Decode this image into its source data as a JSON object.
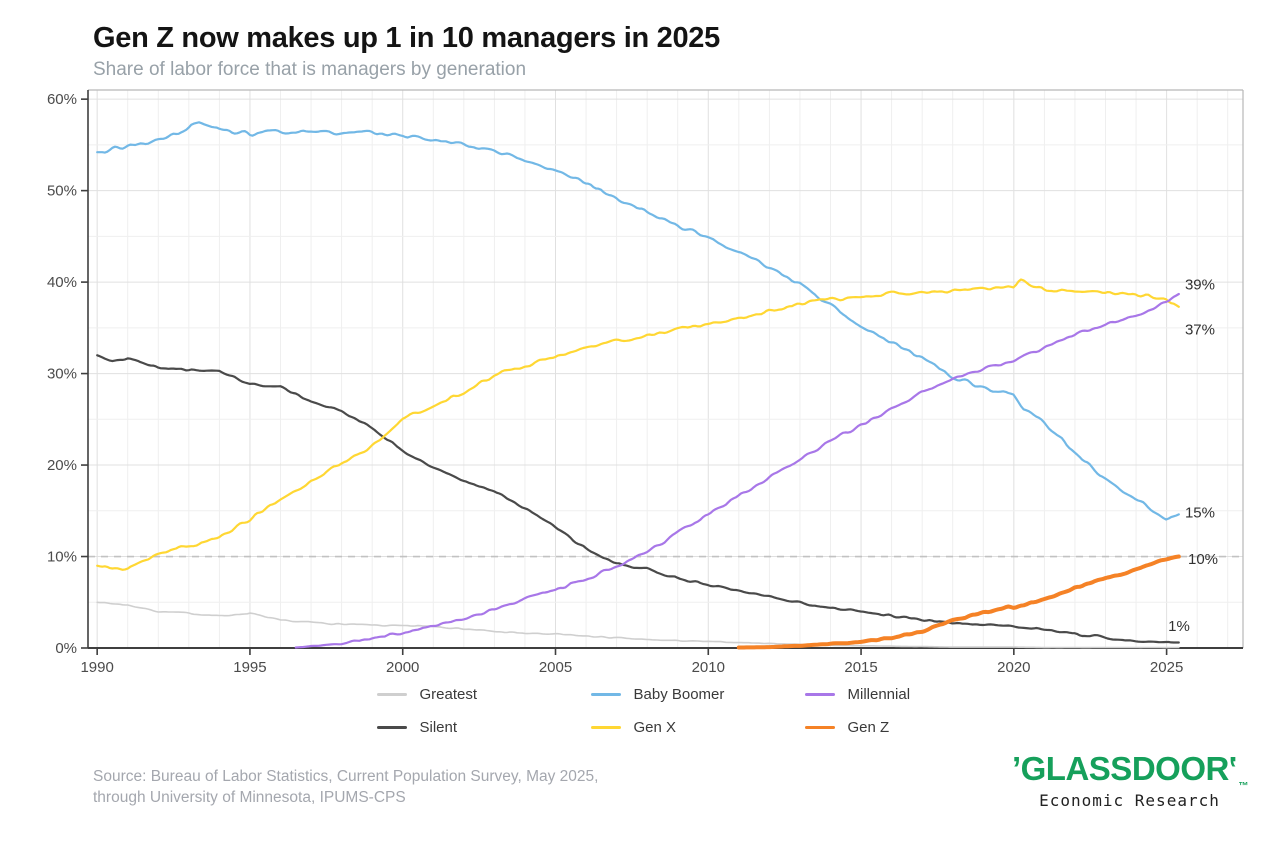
{
  "header": {
    "title": "Gen Z now makes up 1 in 10 managers in 2025",
    "subtitle": "Share of labor force that is managers by generation"
  },
  "chart_data": {
    "type": "line",
    "title": "Gen Z now makes up 1 in 10 managers in 2025",
    "subtitle": "Share of labor force that is managers by generation",
    "xlabel": "",
    "ylabel": "",
    "x": {
      "min": 1989.7,
      "max": 2027.5,
      "ticks": [
        1990,
        1995,
        2000,
        2005,
        2010,
        2015,
        2020,
        2025
      ],
      "minor_step": 1
    },
    "y": {
      "min": 0,
      "max": 61,
      "ticks": [
        0,
        10,
        20,
        30,
        40,
        50,
        60
      ],
      "tick_suffix": "%",
      "minor_step": 5
    },
    "grid": true,
    "legend_position": "bottom",
    "reference_line": {
      "value": 10,
      "style": "dashed"
    },
    "series": [
      {
        "name": "Greatest",
        "color": "#cfcfcf",
        "width": 1.6,
        "noise": 0.12,
        "points": [
          [
            1990,
            5.0
          ],
          [
            1991,
            4.7
          ],
          [
            1992,
            4.0
          ],
          [
            1993,
            3.8
          ],
          [
            1994,
            3.5
          ],
          [
            1995,
            3.8
          ],
          [
            1996,
            3.0
          ],
          [
            1997,
            2.8
          ],
          [
            1998,
            2.6
          ],
          [
            1999,
            2.5
          ],
          [
            2000,
            2.4
          ],
          [
            2001,
            2.4
          ],
          [
            2002,
            2.1
          ],
          [
            2003,
            1.8
          ],
          [
            2004,
            1.6
          ],
          [
            2005,
            1.5
          ],
          [
            2006,
            1.3
          ],
          [
            2007,
            1.1
          ],
          [
            2008,
            0.9
          ],
          [
            2009,
            0.8
          ],
          [
            2010,
            0.7
          ],
          [
            2011,
            0.6
          ],
          [
            2012,
            0.5
          ],
          [
            2013,
            0.4
          ],
          [
            2014,
            0.3
          ],
          [
            2015,
            0.25
          ],
          [
            2016,
            0.2
          ],
          [
            2017,
            0.15
          ],
          [
            2018,
            0.1
          ],
          [
            2019,
            0.1
          ],
          [
            2020,
            0.1
          ],
          [
            2021,
            0.05
          ],
          [
            2022,
            0.05
          ],
          [
            2023,
            0.05
          ],
          [
            2024,
            0.05
          ],
          [
            2025.4,
            0.05
          ]
        ]
      },
      {
        "name": "Silent",
        "color": "#4a4a4a",
        "width": 2.2,
        "noise": 0.22,
        "points": [
          [
            1990,
            32.0
          ],
          [
            1990.5,
            31.5
          ],
          [
            1991,
            31.6
          ],
          [
            1992,
            30.6
          ],
          [
            1993,
            30.4
          ],
          [
            1994,
            30.3
          ],
          [
            1995,
            28.8
          ],
          [
            1996,
            28.6
          ],
          [
            1997,
            27.0
          ],
          [
            1998,
            25.8
          ],
          [
            1999,
            24.0
          ],
          [
            2000,
            21.5
          ],
          [
            2001,
            19.8
          ],
          [
            2002,
            18.2
          ],
          [
            2003,
            17.2
          ],
          [
            2004,
            15.2
          ],
          [
            2005,
            13.2
          ],
          [
            2006,
            10.8
          ],
          [
            2007,
            9.2
          ],
          [
            2008,
            8.6
          ],
          [
            2009,
            7.6
          ],
          [
            2010,
            7.0
          ],
          [
            2011,
            6.3
          ],
          [
            2012,
            5.6
          ],
          [
            2013,
            5.0
          ],
          [
            2014,
            4.4
          ],
          [
            2015,
            4.0
          ],
          [
            2016,
            3.5
          ],
          [
            2017,
            3.1
          ],
          [
            2018,
            2.8
          ],
          [
            2019,
            2.6
          ],
          [
            2020,
            2.4
          ],
          [
            2021,
            2.0
          ],
          [
            2022,
            1.5
          ],
          [
            2023,
            1.1
          ],
          [
            2024,
            0.8
          ],
          [
            2025.4,
            0.6
          ]
        ]
      },
      {
        "name": "Baby Boomer",
        "color": "#72b8e6",
        "width": 2.2,
        "noise": 0.35,
        "points": [
          [
            1990,
            54.2
          ],
          [
            1991,
            54.8
          ],
          [
            1992,
            55.5
          ],
          [
            1993,
            56.8
          ],
          [
            1993.3,
            57.5
          ],
          [
            1994,
            56.6
          ],
          [
            1995,
            56.2
          ],
          [
            1996,
            56.4
          ],
          [
            1997,
            56.6
          ],
          [
            1998,
            56.2
          ],
          [
            1999,
            56.4
          ],
          [
            2000,
            56.0
          ],
          [
            2001,
            55.6
          ],
          [
            2002,
            55.0
          ],
          [
            2003,
            54.5
          ],
          [
            2004,
            53.3
          ],
          [
            2005,
            52.2
          ],
          [
            2006,
            50.8
          ],
          [
            2007,
            49.2
          ],
          [
            2008,
            47.6
          ],
          [
            2009,
            46.2
          ],
          [
            2010,
            45.0
          ],
          [
            2011,
            43.2
          ],
          [
            2012,
            41.6
          ],
          [
            2013,
            39.8
          ],
          [
            2014,
            37.6
          ],
          [
            2015,
            35.0
          ],
          [
            2016,
            33.4
          ],
          [
            2017,
            31.6
          ],
          [
            2018,
            29.6
          ],
          [
            2019,
            28.4
          ],
          [
            2020,
            27.6
          ],
          [
            2020.3,
            26.2
          ],
          [
            2021,
            24.6
          ],
          [
            2022,
            21.4
          ],
          [
            2023,
            18.4
          ],
          [
            2024,
            16.2
          ],
          [
            2025,
            14.0
          ],
          [
            2025.4,
            14.6
          ]
        ]
      },
      {
        "name": "Gen X",
        "color": "#ffd733",
        "width": 2.2,
        "noise": 0.33,
        "points": [
          [
            1990,
            9.0
          ],
          [
            1991,
            8.7
          ],
          [
            1992,
            10.3
          ],
          [
            1993,
            11.2
          ],
          [
            1994,
            12.0
          ],
          [
            1995,
            14.2
          ],
          [
            1996,
            16.2
          ],
          [
            1997,
            18.2
          ],
          [
            1998,
            20.2
          ],
          [
            1999,
            22.0
          ],
          [
            2000,
            25.0
          ],
          [
            2001,
            26.5
          ],
          [
            2002,
            28.0
          ],
          [
            2003,
            29.8
          ],
          [
            2004,
            30.8
          ],
          [
            2005,
            31.8
          ],
          [
            2006,
            32.8
          ],
          [
            2007,
            33.6
          ],
          [
            2008,
            34.2
          ],
          [
            2009,
            34.8
          ],
          [
            2010,
            35.4
          ],
          [
            2011,
            36.0
          ],
          [
            2012,
            36.8
          ],
          [
            2013,
            37.6
          ],
          [
            2014,
            38.2
          ],
          [
            2015,
            38.4
          ],
          [
            2016,
            38.7
          ],
          [
            2017,
            38.9
          ],
          [
            2018,
            39.1
          ],
          [
            2019,
            39.3
          ],
          [
            2020,
            39.6
          ],
          [
            2020.2,
            40.2
          ],
          [
            2021,
            39.2
          ],
          [
            2022,
            39.0
          ],
          [
            2023,
            38.8
          ],
          [
            2024,
            38.6
          ],
          [
            2025,
            38.2
          ],
          [
            2025.4,
            37.3
          ]
        ]
      },
      {
        "name": "Millennial",
        "color": "#a877e8",
        "width": 2.2,
        "noise": 0.3,
        "points": [
          [
            1996.5,
            0.05
          ],
          [
            1997,
            0.2
          ],
          [
            1998,
            0.5
          ],
          [
            1999,
            1.0
          ],
          [
            2000,
            1.7
          ],
          [
            2001,
            2.4
          ],
          [
            2002,
            3.3
          ],
          [
            2003,
            4.3
          ],
          [
            2004,
            5.3
          ],
          [
            2005,
            6.4
          ],
          [
            2006,
            7.6
          ],
          [
            2007,
            8.9
          ],
          [
            2008,
            10.6
          ],
          [
            2009,
            12.6
          ],
          [
            2010,
            14.6
          ],
          [
            2011,
            16.6
          ],
          [
            2012,
            18.6
          ],
          [
            2013,
            20.6
          ],
          [
            2014,
            22.6
          ],
          [
            2015,
            24.4
          ],
          [
            2016,
            26.2
          ],
          [
            2017,
            28.0
          ],
          [
            2018,
            29.4
          ],
          [
            2019,
            30.6
          ],
          [
            2020,
            31.4
          ],
          [
            2021,
            32.8
          ],
          [
            2022,
            34.2
          ],
          [
            2023,
            35.4
          ],
          [
            2024,
            36.4
          ],
          [
            2025,
            37.8
          ],
          [
            2025.4,
            38.7
          ]
        ]
      },
      {
        "name": "Gen Z",
        "color": "#f58226",
        "width": 4,
        "noise": 0.18,
        "points": [
          [
            2011,
            0.05
          ],
          [
            2012,
            0.1
          ],
          [
            2013,
            0.25
          ],
          [
            2014,
            0.45
          ],
          [
            2015,
            0.7
          ],
          [
            2016,
            1.1
          ],
          [
            2017,
            1.9
          ],
          [
            2017.6,
            2.6
          ],
          [
            2018,
            3.0
          ],
          [
            2019,
            3.8
          ],
          [
            2019.8,
            4.5
          ],
          [
            2020,
            4.4
          ],
          [
            2021,
            5.3
          ],
          [
            2022,
            6.6
          ],
          [
            2023,
            7.6
          ],
          [
            2024,
            8.6
          ],
          [
            2025,
            9.7
          ],
          [
            2025.4,
            10.0
          ]
        ]
      }
    ],
    "annotations": [
      {
        "text": "39%",
        "year": 2025.6,
        "value": 39.6
      },
      {
        "text": "37%",
        "year": 2025.6,
        "value": 34.7
      },
      {
        "text": "15%",
        "year": 2025.6,
        "value": 14.7
      },
      {
        "text": "10%",
        "year": 2025.7,
        "value": 9.6
      },
      {
        "text": "1%",
        "year": 2025.05,
        "value": 2.3
      }
    ]
  },
  "footer": {
    "source_line1": "Source: Bureau of Labor Statistics, Current Population Survey, May 2025,",
    "source_line2": "through University of Minnesota, IPUMS-CPS",
    "logo": {
      "mark_open": "’",
      "text": "GLASSDOOR",
      "mark_close": "’",
      "tm": "™",
      "subtext": "Economic Research",
      "color": "#16A05B"
    }
  }
}
